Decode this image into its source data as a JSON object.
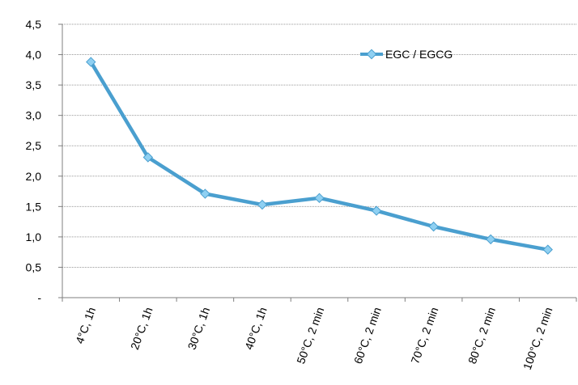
{
  "chart_data": {
    "type": "line",
    "categories": [
      "4°C, 1h",
      "20°C, 1h",
      "30°C, 1h",
      "40°C, 1h",
      "50°C, 2 min",
      "60°C, 2 min",
      "70°C, 2 min",
      "80°C, 2 min",
      "100°C, 2 min"
    ],
    "series": [
      {
        "name": "EGC / EGCG",
        "values": [
          3.88,
          2.31,
          1.71,
          1.53,
          1.64,
          1.43,
          1.17,
          0.96,
          0.79
        ],
        "color": "#4a9fcf",
        "marker_color": "#8fd0f2"
      }
    ],
    "yticks": [
      "-",
      "0,5",
      "1,0",
      "1,5",
      "2,0",
      "2,5",
      "3,0",
      "3,5",
      "4,0",
      "4,5"
    ],
    "ylim": [
      0,
      4.5
    ],
    "grid": "horizontal dotted",
    "legend_position": "top-right"
  }
}
